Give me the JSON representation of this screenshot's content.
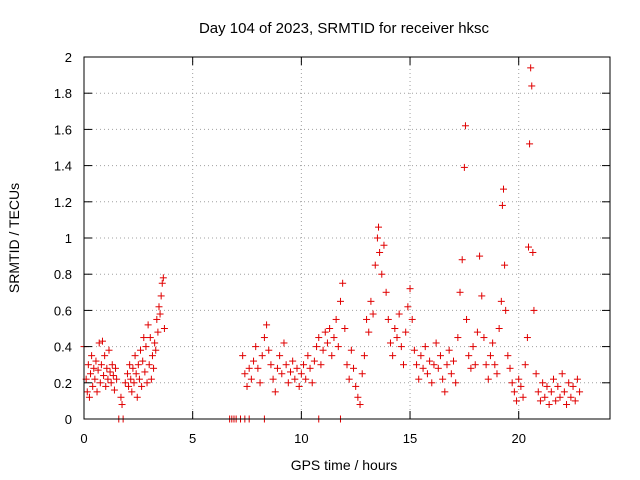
{
  "chart_data": {
    "type": "scatter",
    "title": "Day 104 of 2023, SRMTID for receiver hksc",
    "xlabel": "GPS time / hours",
    "ylabel": "SRMTID / TECUs",
    "xlim": [
      0,
      24.2
    ],
    "ylim": [
      0,
      2
    ],
    "xticks": [
      0,
      5,
      10,
      15,
      20
    ],
    "xtick_labels": [
      "0",
      "5",
      "10",
      "15",
      "20"
    ],
    "yticks": [
      0,
      0.2,
      0.4,
      0.6,
      0.8,
      1,
      1.2,
      1.4,
      1.6,
      1.8,
      2
    ],
    "ytick_labels": [
      "0",
      "0.2",
      "0.4",
      "0.6",
      "0.8",
      "1",
      "1.2",
      "1.4",
      "1.6",
      "1.8",
      "2"
    ],
    "grid": true,
    "marker": "+",
    "color": "#e00000",
    "series": [
      {
        "name": "SRMTID",
        "points": [
          [
            0.0,
            0.4
          ],
          [
            0.1,
            0.22
          ],
          [
            0.15,
            0.15
          ],
          [
            0.2,
            0.3
          ],
          [
            0.25,
            0.12
          ],
          [
            0.3,
            0.25
          ],
          [
            0.35,
            0.35
          ],
          [
            0.4,
            0.18
          ],
          [
            0.45,
            0.28
          ],
          [
            0.5,
            0.22
          ],
          [
            0.55,
            0.32
          ],
          [
            0.6,
            0.15
          ],
          [
            0.65,
            0.27
          ],
          [
            0.7,
            0.42
          ],
          [
            0.75,
            0.2
          ],
          [
            0.8,
            0.3
          ],
          [
            0.85,
            0.43
          ],
          [
            0.9,
            0.24
          ],
          [
            0.95,
            0.35
          ],
          [
            1.0,
            0.18
          ],
          [
            1.05,
            0.28
          ],
          [
            1.1,
            0.22
          ],
          [
            1.15,
            0.38
          ],
          [
            1.2,
            0.26
          ],
          [
            1.25,
            0.2
          ],
          [
            1.3,
            0.3
          ],
          [
            1.35,
            0.24
          ],
          [
            1.4,
            0.16
          ],
          [
            1.45,
            0.28
          ],
          [
            1.5,
            0.22
          ],
          [
            1.6,
            0.0
          ],
          [
            1.8,
            0.0
          ],
          [
            1.7,
            0.12
          ],
          [
            1.75,
            0.08
          ],
          [
            1.9,
            0.2
          ],
          [
            2.0,
            0.25
          ],
          [
            2.05,
            0.18
          ],
          [
            2.1,
            0.3
          ],
          [
            2.15,
            0.22
          ],
          [
            2.2,
            0.15
          ],
          [
            2.25,
            0.28
          ],
          [
            2.3,
            0.2
          ],
          [
            2.35,
            0.35
          ],
          [
            2.4,
            0.25
          ],
          [
            2.45,
            0.12
          ],
          [
            2.5,
            0.3
          ],
          [
            2.55,
            0.22
          ],
          [
            2.6,
            0.38
          ],
          [
            2.65,
            0.18
          ],
          [
            2.7,
            0.32
          ],
          [
            2.75,
            0.45
          ],
          [
            2.8,
            0.26
          ],
          [
            2.85,
            0.4
          ],
          [
            2.9,
            0.2
          ],
          [
            2.95,
            0.52
          ],
          [
            3.0,
            0.3
          ],
          [
            3.05,
            0.45
          ],
          [
            3.1,
            0.22
          ],
          [
            3.15,
            0.35
          ],
          [
            3.2,
            0.28
          ],
          [
            3.25,
            0.42
          ],
          [
            3.3,
            0.38
          ],
          [
            3.35,
            0.55
          ],
          [
            3.4,
            0.48
          ],
          [
            3.45,
            0.62
          ],
          [
            3.5,
            0.58
          ],
          [
            3.55,
            0.68
          ],
          [
            3.6,
            0.75
          ],
          [
            3.65,
            0.78
          ],
          [
            3.7,
            0.5
          ],
          [
            6.7,
            0.0
          ],
          [
            6.8,
            0.0
          ],
          [
            6.9,
            0.0
          ],
          [
            7.0,
            0.0
          ],
          [
            7.2,
            0.0
          ],
          [
            7.4,
            0.0
          ],
          [
            7.6,
            0.0
          ],
          [
            8.3,
            0.0
          ],
          [
            10.8,
            0.0
          ],
          [
            11.8,
            0.0
          ],
          [
            7.3,
            0.35
          ],
          [
            7.4,
            0.25
          ],
          [
            7.5,
            0.18
          ],
          [
            7.6,
            0.28
          ],
          [
            7.7,
            0.22
          ],
          [
            7.8,
            0.32
          ],
          [
            7.9,
            0.4
          ],
          [
            8.0,
            0.28
          ],
          [
            8.1,
            0.2
          ],
          [
            8.2,
            0.35
          ],
          [
            8.3,
            0.45
          ],
          [
            8.4,
            0.52
          ],
          [
            8.5,
            0.38
          ],
          [
            8.6,
            0.3
          ],
          [
            8.7,
            0.22
          ],
          [
            8.8,
            0.15
          ],
          [
            8.9,
            0.28
          ],
          [
            9.0,
            0.35
          ],
          [
            9.1,
            0.25
          ],
          [
            9.2,
            0.42
          ],
          [
            9.3,
            0.3
          ],
          [
            9.4,
            0.2
          ],
          [
            9.5,
            0.26
          ],
          [
            9.6,
            0.32
          ],
          [
            9.7,
            0.22
          ],
          [
            9.8,
            0.28
          ],
          [
            9.9,
            0.18
          ],
          [
            10.0,
            0.25
          ],
          [
            10.1,
            0.3
          ],
          [
            10.2,
            0.22
          ],
          [
            10.3,
            0.35
          ],
          [
            10.4,
            0.28
          ],
          [
            10.5,
            0.2
          ],
          [
            10.6,
            0.32
          ],
          [
            10.7,
            0.4
          ],
          [
            10.8,
            0.45
          ],
          [
            10.9,
            0.3
          ],
          [
            11.0,
            0.38
          ],
          [
            11.1,
            0.48
          ],
          [
            11.2,
            0.42
          ],
          [
            11.3,
            0.5
          ],
          [
            11.4,
            0.35
          ],
          [
            11.5,
            0.45
          ],
          [
            11.6,
            0.55
          ],
          [
            11.7,
            0.4
          ],
          [
            11.8,
            0.65
          ],
          [
            11.9,
            0.75
          ],
          [
            12.0,
            0.5
          ],
          [
            12.1,
            0.3
          ],
          [
            12.2,
            0.22
          ],
          [
            12.3,
            0.38
          ],
          [
            12.4,
            0.28
          ],
          [
            12.5,
            0.18
          ],
          [
            12.6,
            0.12
          ],
          [
            12.7,
            0.08
          ],
          [
            12.8,
            0.25
          ],
          [
            12.9,
            0.35
          ],
          [
            13.0,
            0.55
          ],
          [
            13.1,
            0.48
          ],
          [
            13.2,
            0.65
          ],
          [
            13.3,
            0.58
          ],
          [
            13.4,
            0.85
          ],
          [
            13.5,
            1.0
          ],
          [
            13.55,
            1.06
          ],
          [
            13.6,
            0.92
          ],
          [
            13.7,
            0.8
          ],
          [
            13.8,
            0.96
          ],
          [
            13.9,
            0.7
          ],
          [
            14.0,
            0.55
          ],
          [
            14.1,
            0.42
          ],
          [
            14.2,
            0.35
          ],
          [
            14.3,
            0.5
          ],
          [
            14.4,
            0.45
          ],
          [
            14.5,
            0.58
          ],
          [
            14.6,
            0.4
          ],
          [
            14.7,
            0.3
          ],
          [
            14.8,
            0.48
          ],
          [
            14.9,
            0.62
          ],
          [
            15.0,
            0.72
          ],
          [
            15.1,
            0.55
          ],
          [
            15.2,
            0.38
          ],
          [
            15.3,
            0.3
          ],
          [
            15.4,
            0.22
          ],
          [
            15.5,
            0.35
          ],
          [
            15.6,
            0.28
          ],
          [
            15.7,
            0.4
          ],
          [
            15.8,
            0.25
          ],
          [
            15.9,
            0.32
          ],
          [
            16.0,
            0.2
          ],
          [
            16.1,
            0.3
          ],
          [
            16.2,
            0.42
          ],
          [
            16.3,
            0.28
          ],
          [
            16.4,
            0.35
          ],
          [
            16.5,
            0.22
          ],
          [
            16.6,
            0.15
          ],
          [
            16.7,
            0.3
          ],
          [
            16.8,
            0.38
          ],
          [
            16.9,
            0.25
          ],
          [
            17.0,
            0.32
          ],
          [
            17.1,
            0.2
          ],
          [
            17.2,
            0.45
          ],
          [
            17.3,
            0.7
          ],
          [
            17.4,
            0.88
          ],
          [
            17.5,
            1.39
          ],
          [
            17.55,
            1.62
          ],
          [
            17.6,
            0.55
          ],
          [
            17.7,
            0.35
          ],
          [
            17.8,
            0.28
          ],
          [
            17.9,
            0.4
          ],
          [
            18.0,
            0.3
          ],
          [
            18.1,
            0.48
          ],
          [
            18.2,
            0.9
          ],
          [
            18.3,
            0.68
          ],
          [
            18.4,
            0.45
          ],
          [
            18.5,
            0.3
          ],
          [
            18.6,
            0.22
          ],
          [
            18.7,
            0.35
          ],
          [
            18.8,
            0.42
          ],
          [
            18.9,
            0.3
          ],
          [
            19.0,
            0.25
          ],
          [
            19.1,
            0.5
          ],
          [
            19.2,
            0.65
          ],
          [
            19.25,
            1.18
          ],
          [
            19.3,
            1.27
          ],
          [
            19.35,
            0.85
          ],
          [
            19.4,
            0.6
          ],
          [
            19.5,
            0.35
          ],
          [
            19.6,
            0.28
          ],
          [
            19.7,
            0.2
          ],
          [
            19.8,
            0.15
          ],
          [
            19.9,
            0.1
          ],
          [
            20.0,
            0.22
          ],
          [
            20.1,
            0.18
          ],
          [
            20.2,
            0.12
          ],
          [
            20.3,
            0.3
          ],
          [
            20.4,
            0.45
          ],
          [
            20.45,
            0.95
          ],
          [
            20.5,
            1.52
          ],
          [
            20.55,
            1.94
          ],
          [
            20.6,
            1.84
          ],
          [
            20.65,
            0.92
          ],
          [
            20.7,
            0.6
          ],
          [
            20.8,
            0.25
          ],
          [
            20.9,
            0.15
          ],
          [
            21.0,
            0.1
          ],
          [
            21.1,
            0.2
          ],
          [
            21.2,
            0.12
          ],
          [
            21.3,
            0.18
          ],
          [
            21.4,
            0.08
          ],
          [
            21.5,
            0.15
          ],
          [
            21.6,
            0.22
          ],
          [
            21.7,
            0.1
          ],
          [
            21.8,
            0.18
          ],
          [
            21.9,
            0.12
          ],
          [
            22.0,
            0.25
          ],
          [
            22.1,
            0.15
          ],
          [
            22.2,
            0.08
          ],
          [
            22.3,
            0.2
          ],
          [
            22.4,
            0.12
          ],
          [
            22.5,
            0.18
          ],
          [
            22.6,
            0.1
          ],
          [
            22.7,
            0.22
          ],
          [
            22.8,
            0.15
          ]
        ]
      }
    ]
  }
}
